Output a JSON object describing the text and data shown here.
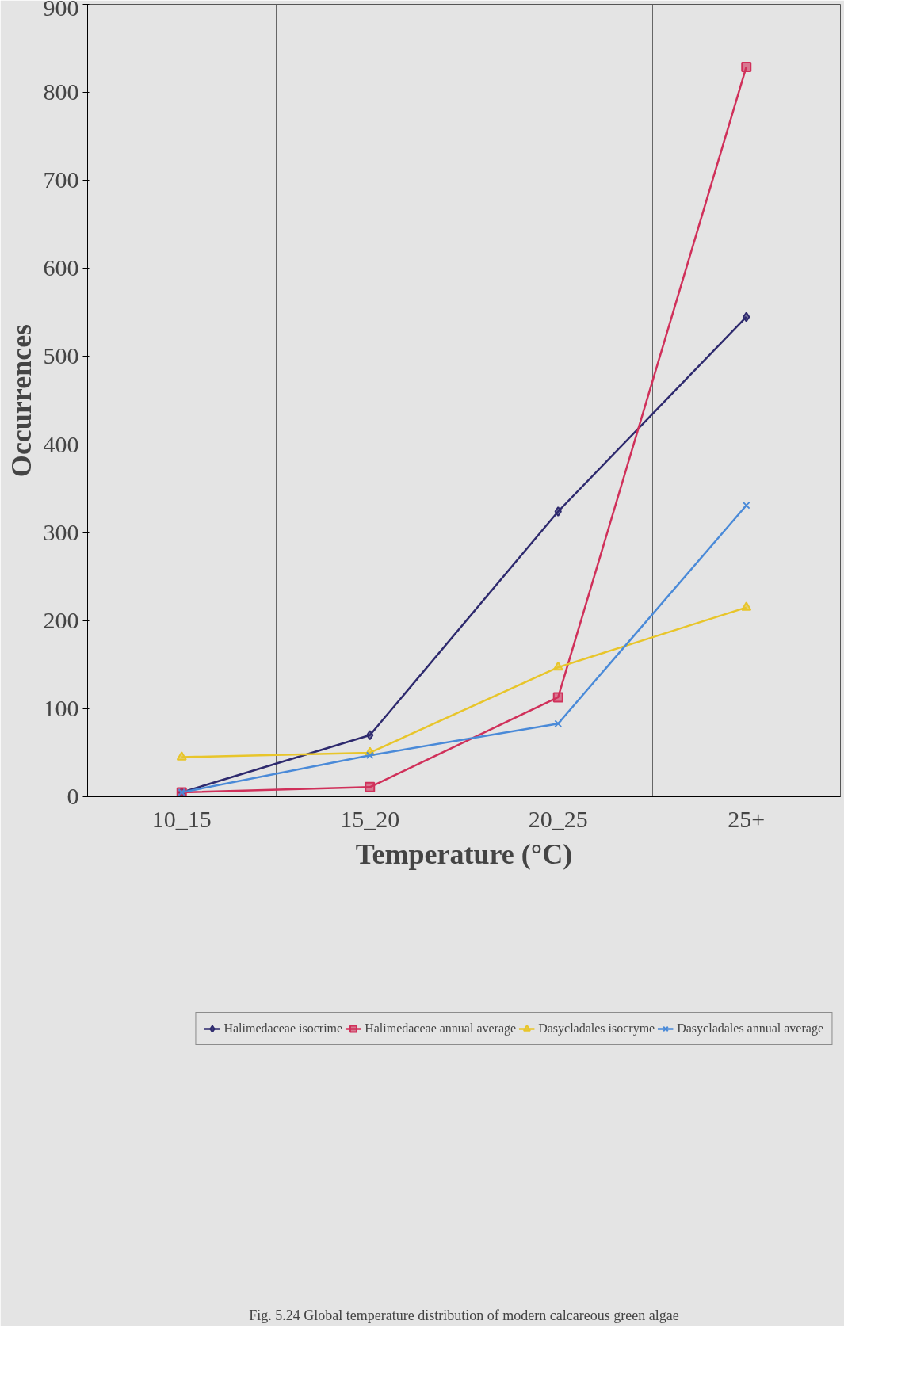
{
  "chart_data": {
    "type": "line",
    "xlabel": "Temperature (°C)",
    "ylabel": "Occurrences",
    "categories": [
      "10_15",
      "15_20",
      "20_25",
      "25+"
    ],
    "series": [
      {
        "name": "Halimedaceae isocrime",
        "color": "#2e2a6e",
        "marker": "diamond",
        "values": [
          5,
          70,
          324,
          545
        ]
      },
      {
        "name": "Halimedaceae annual average",
        "color": "#d0305a",
        "marker": "square",
        "values": [
          5,
          11,
          113,
          829
        ]
      },
      {
        "name": "Dasycladales isocryme",
        "color": "#e8c52a",
        "marker": "triangle",
        "values": [
          45,
          50,
          147,
          215
        ]
      },
      {
        "name": "Dasycladales annual average",
        "color": "#4a8ad8",
        "marker": "x",
        "values": [
          5,
          47,
          83,
          331
        ]
      }
    ],
    "ylim": [
      0,
      900
    ],
    "yticks": [
      0,
      100,
      200,
      300,
      400,
      500,
      600,
      700,
      800,
      900
    ],
    "grid": "x",
    "legend": "bottom",
    "annotations": [
      "Fig. 5.24 Global temperature distribution of modern calcareous green algae"
    ]
  }
}
